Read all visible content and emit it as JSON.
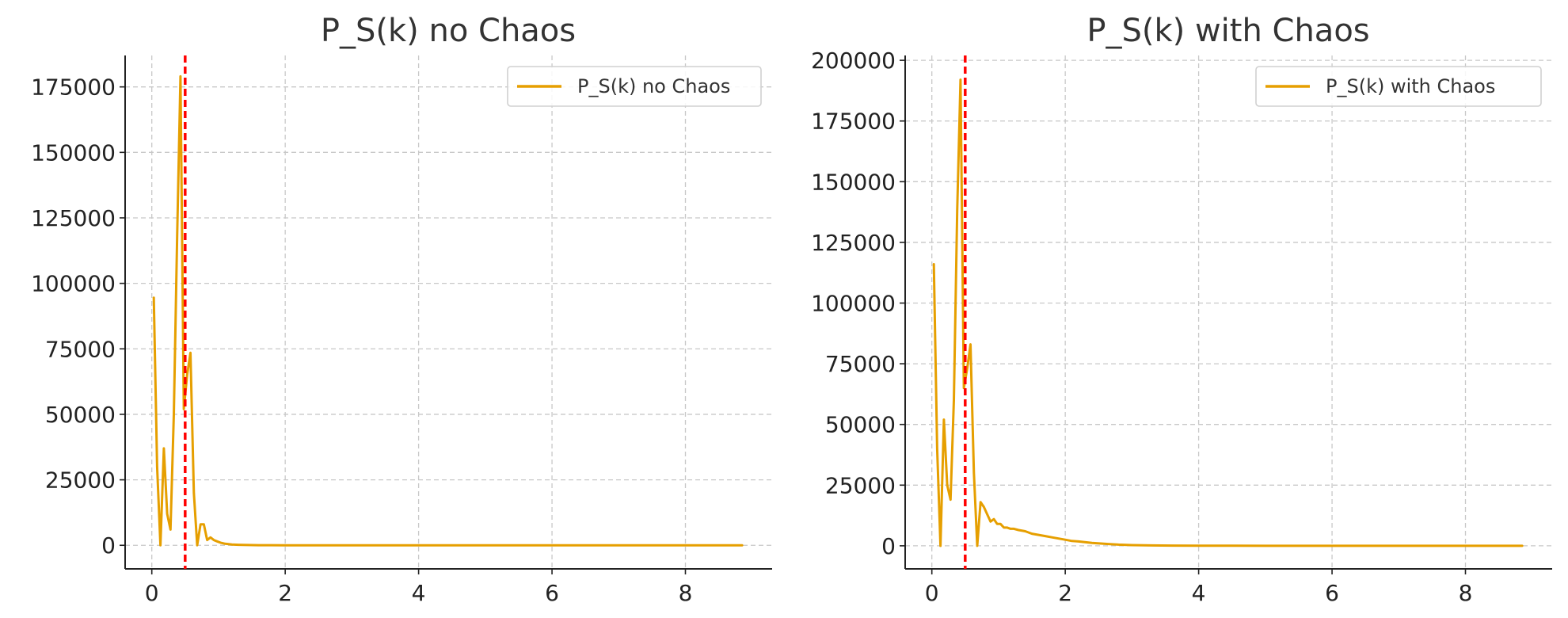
{
  "colors": {
    "series": "#E69F00",
    "marker": "#FF0000",
    "grid": "#C8C8C8",
    "text": "#333333"
  },
  "chart_data": [
    {
      "type": "line",
      "title": "P_S(k) no Chaos",
      "xlabel": "",
      "ylabel": "",
      "xlim": [
        -0.4,
        9.3
      ],
      "ylim": [
        -9000,
        187000
      ],
      "xticks": [
        0,
        2,
        4,
        6,
        8
      ],
      "xtick_labels": [
        "0",
        "2",
        "4",
        "6",
        "8"
      ],
      "yticks": [
        0,
        25000,
        50000,
        75000,
        100000,
        125000,
        150000,
        175000
      ],
      "ytick_labels": [
        "0",
        "25000",
        "50000",
        "75000",
        "100000",
        "125000",
        "150000",
        "175000"
      ],
      "grid": true,
      "legend_position": "top-right",
      "vline": {
        "x": 0.5,
        "style": "dashed",
        "color": "#FF0000"
      },
      "series": [
        {
          "name": "P_S(k) no Chaos",
          "color": "#E69F00",
          "x": [
            0.03,
            0.08,
            0.13,
            0.18,
            0.23,
            0.28,
            0.33,
            0.38,
            0.43,
            0.48,
            0.53,
            0.58,
            0.63,
            0.68,
            0.73,
            0.78,
            0.83,
            0.88,
            0.93,
            0.98,
            1.03,
            1.1,
            1.2,
            1.3,
            1.45,
            1.6,
            1.8,
            2.0,
            2.5,
            3.0,
            4.0,
            5.0,
            6.0,
            7.0,
            8.0,
            8.85
          ],
          "y": [
            94500,
            30000,
            0,
            37000,
            12000,
            6000,
            50000,
            118000,
            179000,
            52000,
            65000,
            73500,
            20000,
            0,
            8000,
            8000,
            2000,
            3000,
            2000,
            1500,
            1000,
            600,
            300,
            200,
            100,
            50,
            30,
            20,
            10,
            5,
            3,
            2,
            1,
            1,
            1,
            0
          ]
        }
      ]
    },
    {
      "type": "line",
      "title": "P_S(k) with Chaos",
      "xlabel": "",
      "ylabel": "",
      "xlim": [
        -0.4,
        9.3
      ],
      "ylim": [
        -9500,
        202000
      ],
      "xticks": [
        0,
        2,
        4,
        6,
        8
      ],
      "xtick_labels": [
        "0",
        "2",
        "4",
        "6",
        "8"
      ],
      "yticks": [
        0,
        25000,
        50000,
        75000,
        100000,
        125000,
        150000,
        175000,
        200000
      ],
      "ytick_labels": [
        "0",
        "25000",
        "50000",
        "75000",
        "100000",
        "125000",
        "150000",
        "175000",
        "200000"
      ],
      "grid": true,
      "legend_position": "top-right",
      "vline": {
        "x": 0.5,
        "style": "dashed",
        "color": "#FF0000"
      },
      "series": [
        {
          "name": "P_S(k) with Chaos",
          "color": "#E69F00",
          "x": [
            0.03,
            0.08,
            0.13,
            0.18,
            0.23,
            0.28,
            0.33,
            0.38,
            0.43,
            0.48,
            0.53,
            0.58,
            0.63,
            0.68,
            0.73,
            0.78,
            0.83,
            0.88,
            0.93,
            0.98,
            1.03,
            1.08,
            1.13,
            1.18,
            1.23,
            1.3,
            1.4,
            1.5,
            1.6,
            1.7,
            1.8,
            1.9,
            2.0,
            2.1,
            2.2,
            2.4,
            2.6,
            2.8,
            3.0,
            3.3,
            3.6,
            4.0,
            4.5,
            5.0,
            6.0,
            7.0,
            8.0,
            8.85
          ],
          "y": [
            116000,
            40000,
            0,
            52000,
            25000,
            19000,
            60000,
            138000,
            192000,
            65000,
            73000,
            83000,
            30000,
            0,
            18000,
            16000,
            13000,
            10000,
            11000,
            9000,
            9000,
            7500,
            7500,
            7000,
            7000,
            6500,
            6000,
            5000,
            4500,
            4000,
            3500,
            3000,
            2500,
            2000,
            1800,
            1200,
            800,
            500,
            300,
            150,
            80,
            40,
            20,
            10,
            5,
            2,
            1,
            0
          ]
        }
      ]
    }
  ]
}
